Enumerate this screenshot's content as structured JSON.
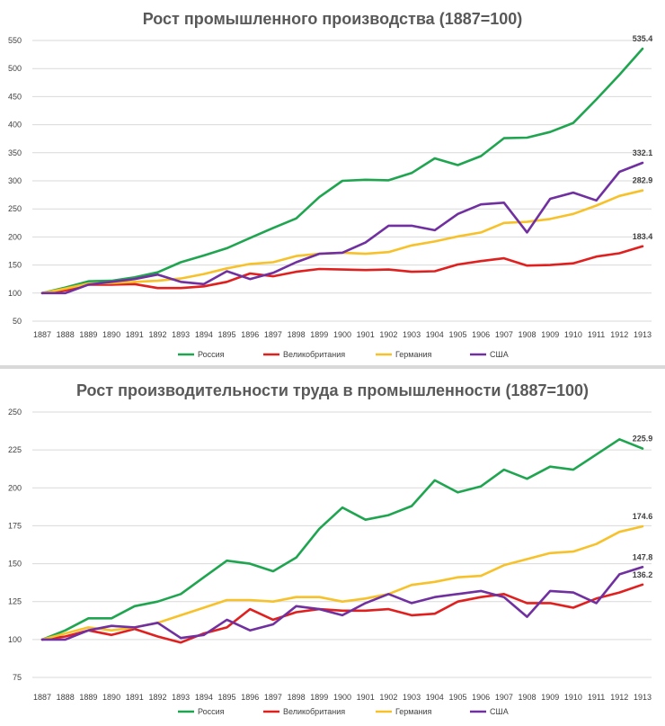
{
  "chart_data": [
    {
      "type": "line",
      "title": "Рост промышленного производства (1887=100)",
      "categories": [
        "1887",
        "1888",
        "1889",
        "1890",
        "1891",
        "1892",
        "1893",
        "1894",
        "1895",
        "1896",
        "1897",
        "1898",
        "1899",
        "1900",
        "1901",
        "1902",
        "1903",
        "1904",
        "1905",
        "1906",
        "1907",
        "1908",
        "1909",
        "1910",
        "1911",
        "1912",
        "1913"
      ],
      "y_ticks": [
        "50",
        "100",
        "150",
        "200",
        "250",
        "300",
        "350",
        "400",
        "450",
        "500",
        "550"
      ],
      "ylim": [
        50,
        550
      ],
      "series": [
        {
          "name": "Россия",
          "color": "#1fa550",
          "values": [
            100,
            110,
            121,
            122,
            128,
            137,
            155,
            167,
            180,
            198,
            216,
            233,
            271,
            300,
            302,
            301,
            314,
            340,
            328,
            344,
            376,
            377,
            387,
            403,
            445,
            489,
            535.4
          ],
          "end_label": "535.4"
        },
        {
          "name": "Великобритания",
          "color": "#e0201f",
          "values": [
            100,
            105,
            115,
            115,
            116,
            109,
            109,
            112,
            120,
            135,
            130,
            138,
            143,
            142,
            141,
            142,
            138,
            139,
            151,
            157,
            162,
            149,
            150,
            153,
            165,
            171,
            183.4
          ],
          "end_label": "183.4"
        },
        {
          "name": "Германия",
          "color": "#f7c12a",
          "values": [
            100,
            108,
            117,
            118,
            120,
            122,
            126,
            134,
            144,
            152,
            155,
            166,
            170,
            172,
            170,
            173,
            185,
            192,
            201,
            208,
            225,
            227,
            232,
            241,
            256,
            273,
            282.9
          ],
          "end_label": "282.9"
        },
        {
          "name": "США",
          "color": "#7030a0",
          "values": [
            100,
            100,
            115,
            120,
            125,
            133,
            120,
            116,
            139,
            125,
            136,
            155,
            170,
            172,
            190,
            220,
            220,
            212,
            241,
            258,
            261,
            208,
            268,
            279,
            265,
            316,
            332.1
          ],
          "end_label": "332.1"
        }
      ]
    },
    {
      "type": "line",
      "title": "Рост производительности труда в промышленности (1887=100)",
      "categories": [
        "1887",
        "1888",
        "1889",
        "1890",
        "1891",
        "1892",
        "1893",
        "1894",
        "1895",
        "1896",
        "1897",
        "1898",
        "1899",
        "1900",
        "1901",
        "1902",
        "1903",
        "1904",
        "1905",
        "1906",
        "1907",
        "1908",
        "1909",
        "1910",
        "1911",
        "1912",
        "1913"
      ],
      "y_ticks": [
        "75",
        "100",
        "125",
        "150",
        "175",
        "200",
        "225",
        "250"
      ],
      "ylim": [
        75,
        250
      ],
      "series": [
        {
          "name": "Россия",
          "color": "#1fa550",
          "values": [
            100,
            106,
            114,
            114,
            122,
            125,
            130,
            141,
            152,
            150,
            145,
            154,
            173,
            187,
            179,
            182,
            188,
            205,
            197,
            201,
            212,
            206,
            214,
            212,
            222,
            232,
            225.9
          ],
          "end_label": "225.9"
        },
        {
          "name": "Великобритания",
          "color": "#e0201f",
          "values": [
            100,
            102,
            106,
            103,
            107,
            102,
            98,
            104,
            108,
            120,
            113,
            118,
            120,
            119,
            119,
            120,
            116,
            117,
            125,
            128,
            130,
            124,
            124,
            121,
            127,
            131,
            136.2
          ],
          "end_label": "136.2"
        },
        {
          "name": "Германия",
          "color": "#f7c12a",
          "values": [
            100,
            104,
            108,
            106,
            108,
            111,
            116,
            121,
            126,
            126,
            125,
            128,
            128,
            125,
            127,
            130,
            136,
            138,
            141,
            142,
            149,
            153,
            157,
            158,
            163,
            171,
            174.6
          ],
          "end_label": "174.6"
        },
        {
          "name": "США",
          "color": "#7030a0",
          "values": [
            100,
            100,
            106,
            109,
            108,
            111,
            101,
            103,
            113,
            106,
            110,
            122,
            120,
            116,
            124,
            130,
            124,
            128,
            130,
            132,
            128,
            115,
            132,
            131,
            124,
            143,
            147.8
          ],
          "end_label": "147.8"
        }
      ]
    }
  ]
}
